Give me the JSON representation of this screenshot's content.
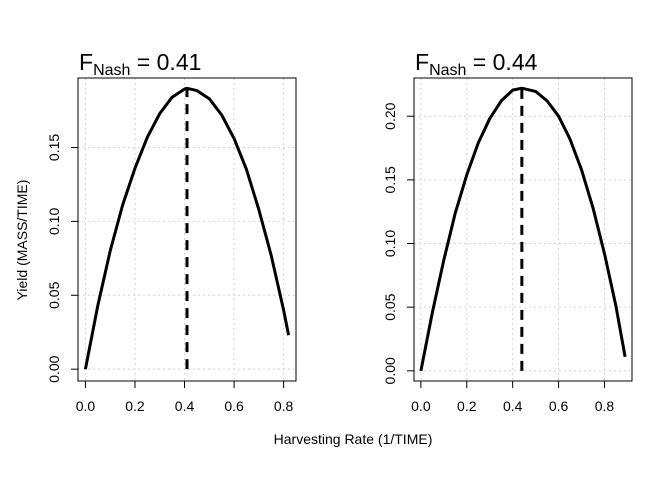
{
  "figure": {
    "shared_xlabel": "Harvesting Rate (1/TIME)",
    "shared_ylabel": "Yield (MASS/TIME)"
  },
  "chart_data": [
    {
      "type": "line",
      "title_main": "F",
      "title_subscript": "Nash",
      "title_value": " = 0.41",
      "x_ticks": [
        "0.0",
        "0.2",
        "0.4",
        "0.6",
        "0.8"
      ],
      "y_ticks": [
        "0.00",
        "0.05",
        "0.10",
        "0.15"
      ],
      "xlim": [
        -0.03,
        0.85
      ],
      "ylim": [
        -0.008,
        0.197
      ],
      "grid": true,
      "series": [
        {
          "style": "solid",
          "color": "#000000",
          "x": [
            0.0,
            0.05,
            0.1,
            0.15,
            0.2,
            0.25,
            0.3,
            0.35,
            0.4,
            0.41,
            0.45,
            0.5,
            0.55,
            0.6,
            0.65,
            0.7,
            0.75,
            0.8,
            0.82
          ],
          "y": [
            0.0,
            0.043,
            0.08,
            0.111,
            0.136,
            0.157,
            0.173,
            0.184,
            0.1895,
            0.19,
            0.1885,
            0.183,
            0.172,
            0.156,
            0.135,
            0.108,
            0.077,
            0.04,
            0.023
          ]
        }
      ],
      "vline": {
        "x": 0.41,
        "y_from": 0.0,
        "y_to": 0.19,
        "style": "dashed",
        "color": "#000000"
      }
    },
    {
      "type": "line",
      "title_main": "F",
      "title_subscript": "Nash",
      "title_value": " = 0.44",
      "x_ticks": [
        "0.0",
        "0.2",
        "0.4",
        "0.6",
        "0.8"
      ],
      "y_ticks": [
        "0.00",
        "0.05",
        "0.10",
        "0.15",
        "0.20"
      ],
      "xlim": [
        -0.03,
        0.92
      ],
      "ylim": [
        -0.008,
        0.23
      ],
      "grid": true,
      "series": [
        {
          "style": "solid",
          "color": "#000000",
          "x": [
            0.0,
            0.05,
            0.1,
            0.15,
            0.2,
            0.25,
            0.3,
            0.35,
            0.4,
            0.44,
            0.5,
            0.55,
            0.6,
            0.65,
            0.7,
            0.75,
            0.8,
            0.85,
            0.89
          ],
          "y": [
            0.0,
            0.046,
            0.087,
            0.124,
            0.154,
            0.179,
            0.198,
            0.212,
            0.2205,
            0.222,
            0.2195,
            0.212,
            0.2,
            0.182,
            0.158,
            0.128,
            0.092,
            0.051,
            0.011
          ]
        }
      ],
      "vline": {
        "x": 0.44,
        "y_from": 0.0,
        "y_to": 0.222,
        "style": "dashed",
        "color": "#000000"
      }
    }
  ]
}
